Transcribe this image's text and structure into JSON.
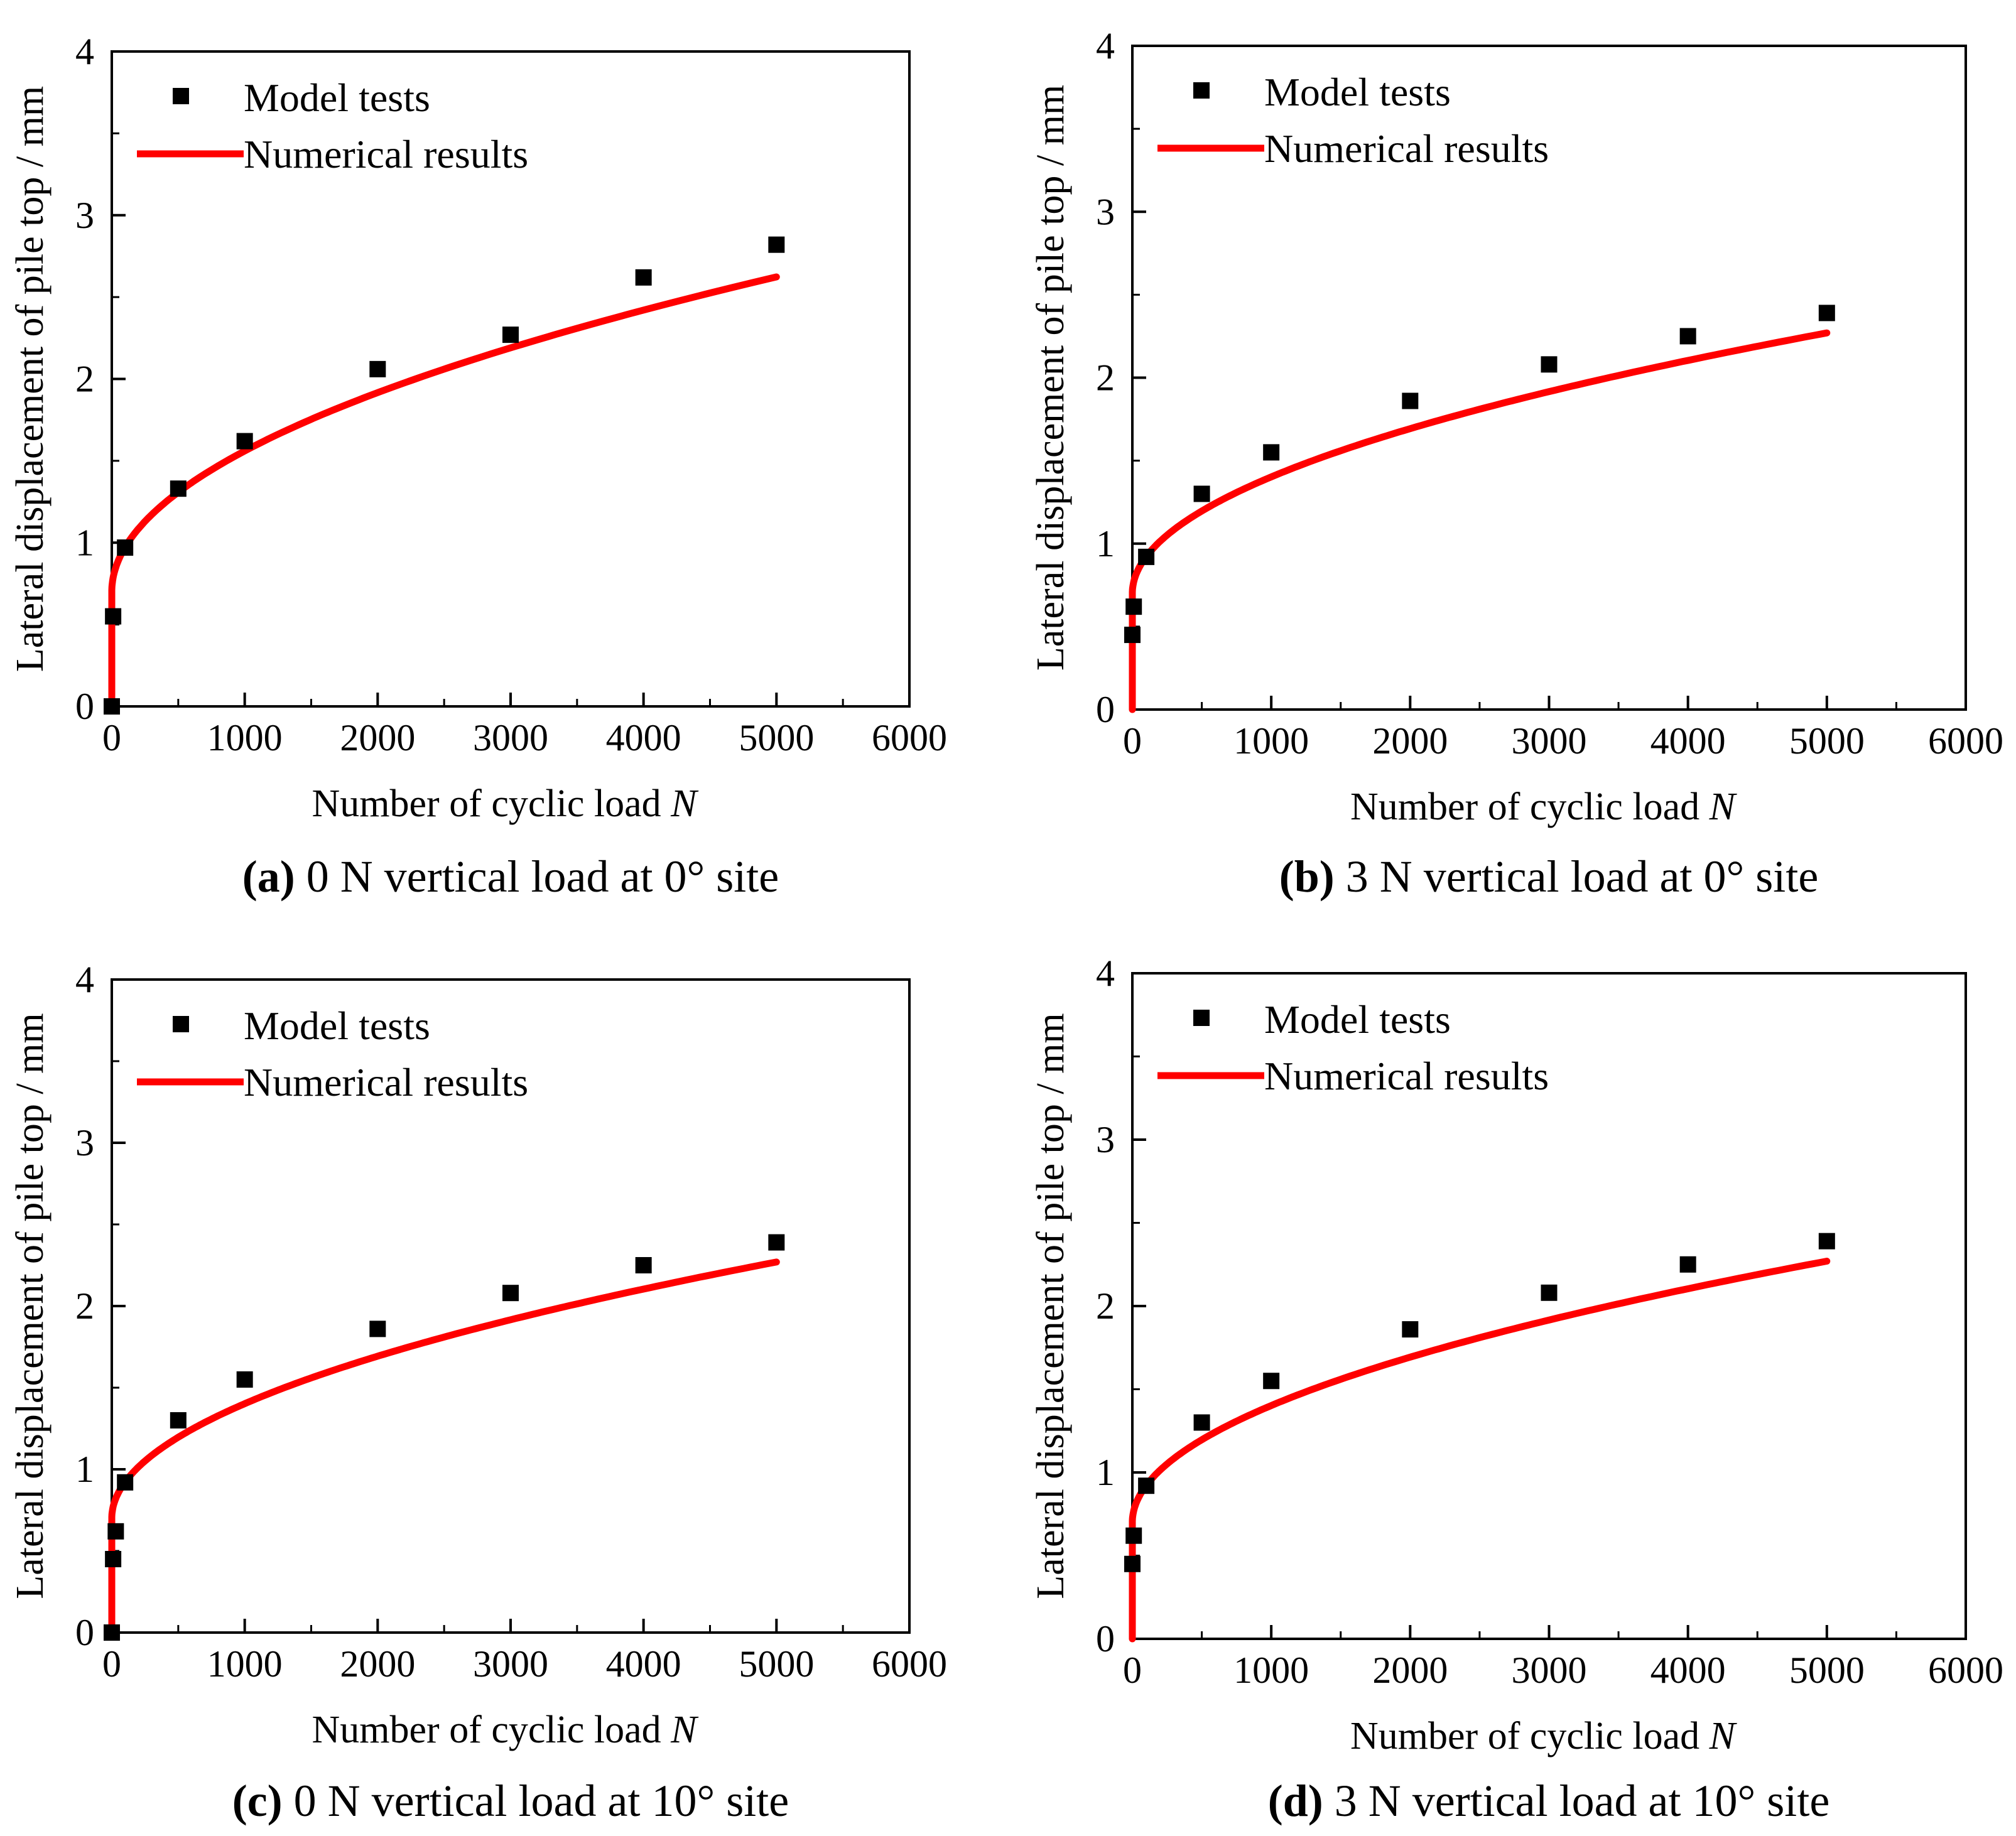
{
  "colors": {
    "model": "#000000",
    "numerical": "#ff0000",
    "axis": "#000000"
  },
  "chart_data": [
    {
      "id": "a",
      "type": "scatter+line",
      "caption_letter": "(a)",
      "caption_text": " 0 N vertical load at 0° site",
      "xlabel": "Number of cyclic load ",
      "xlabel_var": "N",
      "ylabel": "Lateral displacement of pile top / mm",
      "xlim": [
        0,
        6000
      ],
      "ylim": [
        0,
        4
      ],
      "xticks": [
        "0",
        "1000",
        "2000",
        "3000",
        "4000",
        "5000",
        "6000"
      ],
      "yticks": [
        "0",
        "1",
        "2",
        "3",
        "4"
      ],
      "legend": {
        "position": "top-left",
        "model": "Model tests",
        "numerical": "Numerical results"
      },
      "model_tests": {
        "x": [
          0,
          10,
          100,
          500,
          1000,
          2000,
          3000,
          4000,
          5000
        ],
        "y": [
          0,
          0.55,
          0.97,
          1.33,
          1.62,
          2.06,
          2.27,
          2.62,
          2.82
        ]
      },
      "numerical": {
        "A": 0.7,
        "k": 0.0272,
        "p": 0.5,
        "x_max": 5000
      }
    },
    {
      "id": "b",
      "type": "scatter+line",
      "caption_letter": "(b)",
      "caption_text": " 3 N vertical load at 0° site",
      "xlabel": "Number of cyclic load ",
      "xlabel_var": "N",
      "ylabel": "Lateral displacement of pile top / mm",
      "xlim": [
        0,
        6000
      ],
      "ylim": [
        0,
        4
      ],
      "xticks": [
        "0",
        "1000",
        "2000",
        "3000",
        "4000",
        "5000",
        "6000"
      ],
      "yticks": [
        "0",
        "1",
        "2",
        "3",
        "4"
      ],
      "legend": {
        "position": "top-left",
        "model": "Model tests",
        "numerical": "Numerical results"
      },
      "model_tests": {
        "x": [
          0,
          10,
          100,
          500,
          1000,
          2000,
          3000,
          4000,
          5000
        ],
        "y": [
          0.45,
          0.62,
          0.92,
          1.3,
          1.55,
          1.86,
          2.08,
          2.25,
          2.39
        ]
      },
      "numerical": {
        "A": 0.7,
        "k": 0.0222,
        "p": 0.5,
        "x_max": 5000
      }
    },
    {
      "id": "c",
      "type": "scatter+line",
      "caption_letter": "(c)",
      "caption_text": " 0 N vertical load at 10° site",
      "xlabel": "Number of cyclic load ",
      "xlabel_var": "N",
      "ylabel": "Lateral displacement of pile top / mm",
      "xlim": [
        0,
        6000
      ],
      "ylim": [
        0,
        4
      ],
      "xticks": [
        "0",
        "1000",
        "2000",
        "3000",
        "4000",
        "5000",
        "6000"
      ],
      "yticks": [
        "0",
        "1",
        "2",
        "3",
        "4"
      ],
      "legend": {
        "position": "top-left",
        "model": "Model tests",
        "numerical": "Numerical results"
      },
      "model_tests": {
        "x": [
          0,
          10,
          30,
          100,
          500,
          1000,
          2000,
          3000,
          4000,
          5000
        ],
        "y": [
          0,
          0.45,
          0.62,
          0.92,
          1.3,
          1.55,
          1.86,
          2.08,
          2.25,
          2.39
        ]
      },
      "numerical": {
        "A": 0.7,
        "k": 0.0222,
        "p": 0.5,
        "x_max": 5000
      }
    },
    {
      "id": "d",
      "type": "scatter+line",
      "caption_letter": "(d)",
      "caption_text": " 3 N vertical load at 10° site",
      "xlabel": "Number of cyclic load ",
      "xlabel_var": "N",
      "ylabel": "Lateral displacement of pile top / mm",
      "xlim": [
        0,
        6000
      ],
      "ylim": [
        0,
        4
      ],
      "xticks": [
        "0",
        "1000",
        "2000",
        "3000",
        "4000",
        "5000",
        "6000"
      ],
      "yticks": [
        "0",
        "1",
        "2",
        "3",
        "4"
      ],
      "legend": {
        "position": "top-left",
        "model": "Model tests",
        "numerical": "Numerical results"
      },
      "model_tests": {
        "x": [
          0,
          10,
          100,
          500,
          1000,
          2000,
          3000,
          4000,
          5000
        ],
        "y": [
          0.45,
          0.62,
          0.92,
          1.3,
          1.55,
          1.86,
          2.08,
          2.25,
          2.39
        ]
      },
      "numerical": {
        "A": 0.7,
        "k": 0.0222,
        "p": 0.5,
        "x_max": 5000
      }
    }
  ]
}
